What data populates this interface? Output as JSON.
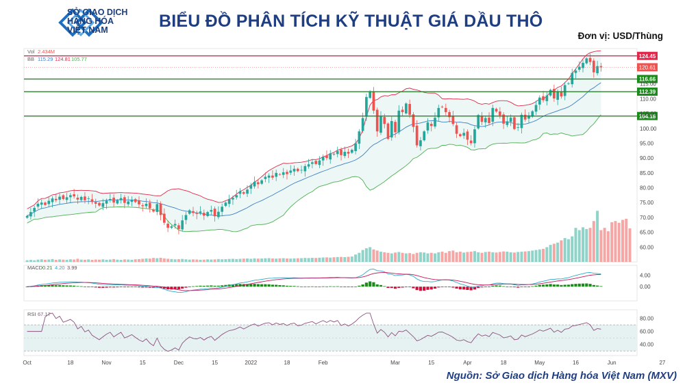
{
  "header": {
    "logo_lines": [
      "SỞ GIAO DỊCH",
      "HÀNG HÓA",
      "VIỆT NAM"
    ],
    "title": "BIỂU ĐỒ PHÂN TÍCH KỸ THUẬT GIÁ DẦU THÔ",
    "unit": "Đơn vị: USD/Thùng"
  },
  "footer": {
    "source": "Nguồn: Sở Giao dịch Hàng hóa Việt Nam (MXV)"
  },
  "chart_data": {
    "type": "candlestick",
    "price_ylim": [
      55,
      126
    ],
    "price_ticks": [
      60,
      65,
      70,
      75,
      80,
      85,
      90,
      95,
      100,
      105,
      110,
      115
    ],
    "x_tick_labels": [
      "Oct",
      "18",
      "Nov",
      "15",
      "Dec",
      "15",
      "2022",
      "18",
      "Feb",
      "Mar",
      "15",
      "Apr",
      "18",
      "May",
      "16",
      "Jun",
      "27"
    ],
    "x_tick_index": [
      0,
      12,
      22,
      32,
      42,
      52,
      62,
      72,
      82,
      102,
      112,
      122,
      132,
      142,
      152,
      162,
      176
    ],
    "horizontal_levels": [
      {
        "value": 124.45,
        "label": "124.45",
        "color": "#e0284a"
      },
      {
        "value": 116.66,
        "label": "116.66",
        "color": "#1e8a1e"
      },
      {
        "value": 112.39,
        "label": "112.39",
        "color": "#1e8a1e"
      },
      {
        "value": 104.18,
        "label": "104.18",
        "color": "#1e8a1e"
      }
    ],
    "last_price": {
      "value": 120.61,
      "label": "120.61"
    },
    "axis_partial_labels": {
      "115": "115.00",
      "110": "110.00",
      "105": "105.00"
    },
    "closes": [
      70.5,
      71.8,
      73.2,
      74.6,
      75.0,
      74.2,
      75.6,
      76.4,
      75.8,
      77.0,
      76.2,
      76.8,
      77.5,
      77.1,
      76.0,
      76.9,
      75.8,
      76.4,
      75.2,
      74.6,
      74.0,
      74.8,
      75.6,
      76.2,
      75.0,
      75.8,
      76.5,
      74.9,
      75.4,
      76.0,
      75.2,
      74.4,
      73.8,
      74.6,
      73.1,
      72.0,
      74.5,
      70.8,
      68.2,
      66.5,
      67.0,
      67.8,
      66.1,
      69.0,
      70.8,
      72.4,
      71.5,
      71.2,
      72.0,
      70.6,
      71.8,
      72.5,
      70.4,
      71.9,
      73.6,
      75.0,
      76.2,
      76.6,
      77.5,
      78.8,
      78.0,
      79.4,
      80.9,
      82.0,
      81.2,
      82.5,
      83.7,
      84.1,
      83.4,
      85.0,
      84.5,
      85.2,
      84.6,
      85.8,
      86.4,
      85.6,
      86.0,
      87.3,
      87.9,
      88.6,
      88.0,
      89.2,
      90.5,
      90.0,
      91.6,
      91.2,
      92.4,
      91.0,
      92.1,
      91.5,
      92.8,
      95.0,
      99.0,
      103.5,
      110.6,
      112.5,
      106.0,
      99.0,
      104.0,
      101.5,
      96.5,
      102.5,
      98.7,
      106.0,
      105.5,
      108.4,
      104.6,
      100.5,
      94.3,
      96.0,
      99.0,
      102.0,
      100.8,
      103.6,
      106.9,
      107.2,
      105.5,
      103.8,
      101.5,
      98.2,
      97.4,
      98.5,
      96.2,
      95.0,
      99.7,
      104.5,
      102.2,
      103.5,
      101.8,
      106.9,
      105.7,
      104.4,
      101.6,
      102.4,
      103.6,
      99.8,
      100.4,
      104.6,
      103.0,
      104.4,
      105.8,
      107.9,
      110.4,
      109.5,
      111.1,
      113.0,
      110.1,
      112.4,
      110.8,
      114.6,
      115.2,
      118.7,
      119.5,
      120.8,
      122.1,
      123.6,
      122.4,
      118.9,
      121.0,
      120.61
    ],
    "volume_ylim": [
      0,
      1000000
    ],
    "volumes": [
      30,
      35,
      28,
      40,
      45,
      38,
      42,
      50,
      36,
      44,
      40,
      38,
      46,
      42,
      55,
      40,
      38,
      44,
      36,
      42,
      40,
      45,
      38,
      42,
      50,
      40,
      36,
      44,
      42,
      38,
      46,
      48,
      55,
      60,
      58,
      70,
      65,
      72,
      60,
      55,
      50,
      45,
      48,
      52,
      46,
      40,
      44,
      42,
      38,
      40,
      45,
      42,
      44,
      50,
      46,
      48,
      52,
      55,
      50,
      54,
      58,
      60,
      55,
      62,
      58,
      60,
      64,
      66,
      60,
      58,
      62,
      65,
      60,
      58,
      62,
      64,
      66,
      70,
      68,
      72,
      70,
      74,
      78,
      80,
      76,
      82,
      86,
      88,
      84,
      90,
      95,
      130,
      160,
      210,
      240,
      260,
      220,
      200,
      180,
      170,
      160,
      150,
      165,
      175,
      160,
      150,
      155,
      140,
      160,
      170,
      165,
      150,
      160,
      150,
      170,
      180,
      160,
      190,
      200,
      170,
      180,
      165,
      175,
      180,
      190,
      170,
      160,
      175,
      180,
      170,
      165,
      175,
      185,
      180,
      170,
      165,
      175,
      180,
      185,
      190,
      200,
      210,
      220,
      230,
      260,
      300,
      320,
      340,
      380,
      420,
      400,
      450,
      600,
      560,
      610,
      580,
      600,
      720,
      900,
      560,
      600,
      540,
      700,
      720,
      690,
      740,
      760,
      590
    ],
    "rsi": {
      "value_label": "67.17",
      "ticks": [
        40,
        60,
        80
      ]
    },
    "macd": {
      "values_label": [
        "0.21",
        "4.20",
        "3.99"
      ],
      "ticks": [
        0,
        4
      ]
    },
    "bb_label": [
      "115.29",
      "124.81",
      "105.77"
    ],
    "vol_label": "2.434M"
  },
  "colors": {
    "up": "#26a69a",
    "down": "#ef5350",
    "bb_band": "#e8f5f3",
    "upper": "#e0284a",
    "lower": "#4caf50",
    "mid": "#3b7fc4"
  }
}
